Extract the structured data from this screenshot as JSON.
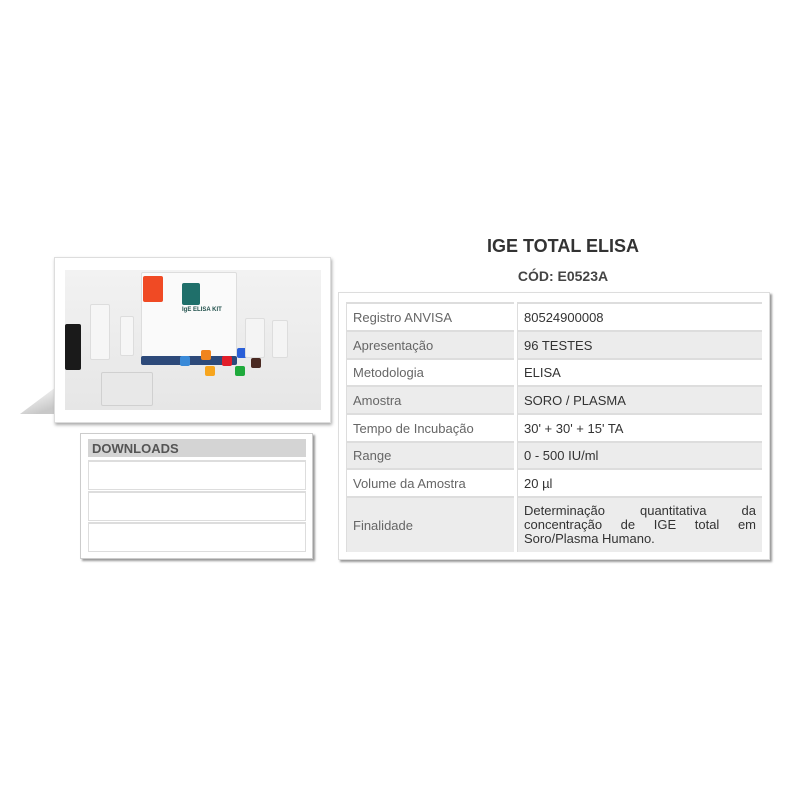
{
  "product": {
    "title": "IGE TOTAL ELISA",
    "code": "CÓD: E0523A",
    "image_label": "IgE ELISA KIT"
  },
  "downloads": {
    "header": "DOWNLOADS",
    "items": [
      "",
      "",
      ""
    ]
  },
  "specs": [
    {
      "label": "Registro ANVISA",
      "value": "80524900008"
    },
    {
      "label": "Apresentação",
      "value": "96 TESTES"
    },
    {
      "label": "Metodologia",
      "value": "ELISA"
    },
    {
      "label": "Amostra",
      "value": "SORO / PLASMA"
    },
    {
      "label": "Tempo de Incubação",
      "value": "30' + 30' + 15' TA"
    },
    {
      "label": "Range",
      "value": "0 - 500 IU/ml"
    },
    {
      "label": "Volume da Amostra",
      "value": "20 µl"
    },
    {
      "label": "Finalidade",
      "value": "Determinação quantitativa da concentração de IGE total em Soro/Plasma Humano."
    }
  ]
}
